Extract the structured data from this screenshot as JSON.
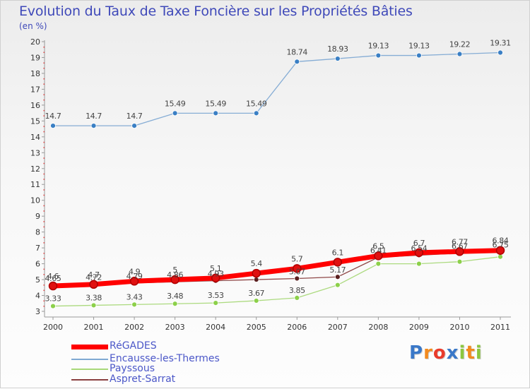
{
  "page": {
    "title": "Evolution du Taux de Taxe Foncière sur les Propriétés Bâties",
    "subtitle": "(en %)"
  },
  "logo": {
    "text": "Proxiti",
    "letters": [
      "P",
      "r",
      "o",
      "x",
      "i",
      "t",
      "i"
    ],
    "colors": [
      "#3a78c8",
      "#f28a1e",
      "#e93b2b",
      "#3a78c8",
      "#8cc63f",
      "#f28a1e",
      "#8cc63f"
    ]
  },
  "chart_data": {
    "type": "line",
    "title": "Evolution du Taux de Taxe Foncière sur les Propriétés Bâties",
    "ylabel": "(en %)",
    "xlabel": "",
    "ylim": [
      3,
      20
    ],
    "yticks": [
      "3",
      "4",
      "5",
      "6",
      "7",
      "8",
      "9",
      "10",
      "11",
      "12",
      "13",
      "14",
      "15",
      "16",
      "17",
      "18",
      "19",
      "20"
    ],
    "x": [
      "2000",
      "2001",
      "2002",
      "2003",
      "2004",
      "2005",
      "2006",
      "2007",
      "2008",
      "2009",
      "2010",
      "2011"
    ],
    "grid": false,
    "legend_position": "bottom-left",
    "series": [
      {
        "name": "Encausse-les-Thermes",
        "color": "#7fa9d3",
        "marker": "#3a7fc4",
        "width": 1.3,
        "values": [
          14.7,
          14.7,
          14.7,
          15.49,
          15.49,
          15.49,
          18.74,
          18.93,
          19.13,
          19.13,
          19.22,
          19.31
        ],
        "labels": [
          "14.7",
          "14.7",
          "14.7",
          "15.49",
          "15.49",
          "15.49",
          "18.74",
          "18.93",
          "19.13",
          "19.13",
          "19.22",
          "19.31"
        ]
      },
      {
        "name": "Payssous",
        "color": "#a8d878",
        "marker": "#8cd04a",
        "width": 1.3,
        "values": [
          3.33,
          3.38,
          3.43,
          3.48,
          3.53,
          3.67,
          3.85,
          4.66,
          6,
          6,
          6.13,
          6.44
        ],
        "labels": [
          "3.33",
          "3.38",
          "3.43",
          "3.48",
          "3.53",
          "3.67",
          "3.85",
          "",
          "",
          "",
          "",
          ""
        ]
      },
      {
        "name": "Aspret-Sarrat",
        "color": "#8a3f3f",
        "marker": "#5a1f1f",
        "width": 1.3,
        "values": [
          4.65,
          4.72,
          4.79,
          4.86,
          4.93,
          5.0,
          5.07,
          5.17,
          6.41,
          6.54,
          6.67,
          6.75
        ],
        "labels": [
          "4.65",
          "4.72",
          "4.79",
          "4.86",
          "4.93",
          "",
          "5.07",
          "5.17",
          "6.41",
          "6.54",
          "6.67",
          "6.75"
        ]
      },
      {
        "name": "RéGADES",
        "color": "#ff0000",
        "marker": "#e01010",
        "width": 7,
        "values": [
          4.6,
          4.7,
          4.9,
          5.0,
          5.1,
          5.4,
          5.7,
          6.1,
          6.5,
          6.7,
          6.77,
          6.84
        ],
        "labels": [
          "4.6",
          "4.7",
          "4.9",
          "5",
          "5.1",
          "5.4",
          "5.7",
          "6.1",
          "6.5",
          "6.7",
          "6.77",
          "6.84"
        ]
      }
    ],
    "legend": [
      "RéGADES",
      "Encausse-les-Thermes",
      "Payssous",
      "Aspret-Sarrat"
    ]
  }
}
